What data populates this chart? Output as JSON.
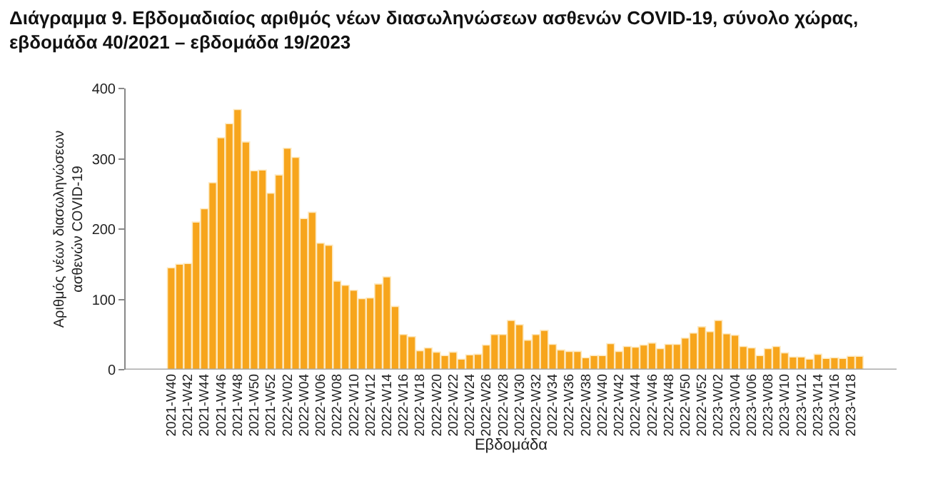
{
  "chart_data": {
    "type": "bar",
    "title": "Διάγραμμα 9. Εβδομαδιαίος αριθμός νέων διασωληνώσεων ασθενών COVID-19, σύνολο χώρας,\nεβδομάδα 40/2021 – εβδομάδα 19/2023",
    "xlabel": "Εβδομάδα",
    "ylabel": "Αριθμός νέων διασωληνώσεων\nασθενών COVID-19",
    "categories": [
      "2021-W40",
      null,
      "2021-W42",
      null,
      "2021-W44",
      null,
      "2021-W46",
      null,
      "2021-W48",
      null,
      "2021-W50",
      null,
      "2021-W52",
      null,
      "2022-W02",
      null,
      "2022-W04",
      null,
      "2022-W06",
      null,
      "2022-W08",
      null,
      "2022-W10",
      null,
      "2022-W12",
      null,
      "2022-W14",
      null,
      "2022-W16",
      null,
      "2022-W18",
      null,
      "2022-W20",
      null,
      "2022-W22",
      null,
      "2022-W24",
      null,
      "2022-W26",
      null,
      "2022-W28",
      null,
      "2022-W30",
      null,
      "2022-W32",
      null,
      "2022-W34",
      null,
      "2022-W36",
      null,
      "2022-W38",
      null,
      "2022-W40",
      null,
      "2022-W42",
      null,
      "2022-W44",
      null,
      "2022-W46",
      null,
      "2022-W48",
      null,
      "2022-W50",
      null,
      "2022-W52",
      null,
      "2023-W02",
      null,
      "2023-W04",
      null,
      "2023-W06",
      null,
      "2023-W08",
      null,
      "2023-W10",
      null,
      "2023-W12",
      null,
      "2023-W14",
      null,
      "2023-W16",
      null,
      "2023-W18",
      null
    ],
    "values": [
      145,
      150,
      151,
      210,
      229,
      266,
      330,
      350,
      370,
      324,
      283,
      284,
      251,
      277,
      315,
      302,
      215,
      224,
      180,
      177,
      126,
      120,
      113,
      101,
      102,
      122,
      132,
      90,
      50,
      47,
      27,
      31,
      25,
      20,
      25,
      15,
      21,
      22,
      35,
      50,
      50,
      70,
      64,
      42,
      50,
      56,
      36,
      28,
      26,
      26,
      17,
      20,
      20,
      37,
      26,
      33,
      32,
      35,
      38,
      30,
      36,
      36,
      45,
      52,
      61,
      54,
      70,
      51,
      49,
      33,
      31,
      20,
      30,
      33,
      24,
      18,
      18,
      15,
      22,
      16,
      17,
      16,
      19,
      19
    ],
    "color": "#f7a51c",
    "ylim": [
      0,
      400
    ],
    "yticks": [
      0,
      100,
      200,
      300,
      400
    ],
    "legend": false
  }
}
